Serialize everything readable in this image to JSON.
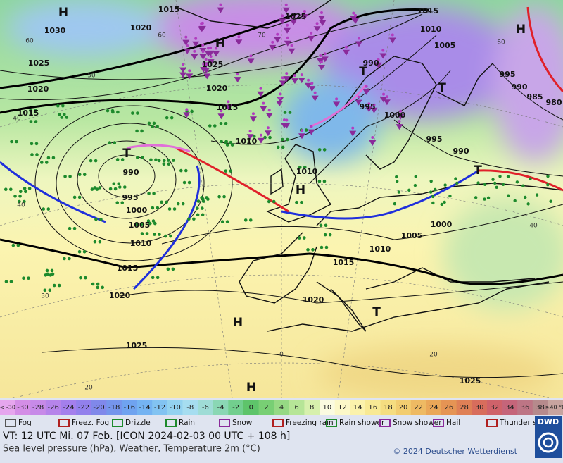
{
  "map": {
    "isobar_labels": [
      "1015",
      "1020",
      "1030",
      "1025",
      "1015",
      "1010",
      "1005",
      "1025",
      "1025",
      "990",
      "1020",
      "1020",
      "995",
      "985",
      "980",
      "990",
      "1015",
      "1015",
      "995",
      "1000",
      "1010",
      "995",
      "990",
      "990",
      "1010",
      "995",
      "1000",
      "1005",
      "1005",
      "1000",
      "1010",
      "1010",
      "1015",
      "1015",
      "1020",
      "1020",
      "1025",
      "1025"
    ],
    "grid_labels": [
      "60",
      "60",
      "70",
      "50",
      "40",
      "40",
      "30",
      "20",
      "20",
      "60",
      "40",
      "0"
    ],
    "pressure_centers": [
      "H",
      "H",
      "H",
      "H",
      "H",
      "H",
      "T",
      "T",
      "T",
      "T",
      "T"
    ]
  },
  "color_scale": {
    "labels": [
      "< -30",
      "-30",
      "-28",
      "-26",
      "-24",
      "-22",
      "-20",
      "-18",
      "-16",
      "-14",
      "-12",
      "-10",
      "-8",
      "-6",
      "-4",
      "-2",
      "0",
      "2",
      "4",
      "6",
      "8",
      "10",
      "12",
      "14",
      "16",
      "18",
      "20",
      "22",
      "24",
      "26",
      "28",
      "30",
      "32",
      "34",
      "36",
      "38",
      "≥40 °C"
    ],
    "colors": [
      "#e6a6ee",
      "#d48ee6",
      "#c78ae8",
      "#b684ea",
      "#a47fec",
      "#9280ec",
      "#8088ea",
      "#7595ec",
      "#6fa3f0",
      "#74b3f2",
      "#82c3f2",
      "#93d2f0",
      "#a6ddf0",
      "#9fdcd6",
      "#8ad7b4",
      "#72cf8e",
      "#5ec46a",
      "#78cf74",
      "#96d984",
      "#b6e597",
      "#d7f0ad",
      "#fbfbe0",
      "#fcf8c8",
      "#fbf2ac",
      "#f8e994",
      "#f5dd80",
      "#f2cd70",
      "#eeba63",
      "#eaa758",
      "#e59454",
      "#df8056",
      "#d86d5c",
      "#cf626a",
      "#c5657a",
      "#bd7585",
      "#b68a8c",
      "#c7a49f"
    ]
  },
  "weather_legend": [
    "Fog",
    "Freez. Fog",
    "Drizzle",
    "Rain",
    "Snow",
    "Freezing rain",
    "Rain shower",
    "Snow shower",
    "Hail",
    "Thunder storm"
  ],
  "footer": {
    "valid_time": "VT: 12 UTC Mi.  07 Feb. [ICON 2024-02-03  00 UTC + 108 h]",
    "description": "Sea level pressure (hPa), Weather, Temperature 2m (°C)",
    "copyright": "© 2024 Deutscher Wetterdienst",
    "logo": "DWD"
  }
}
